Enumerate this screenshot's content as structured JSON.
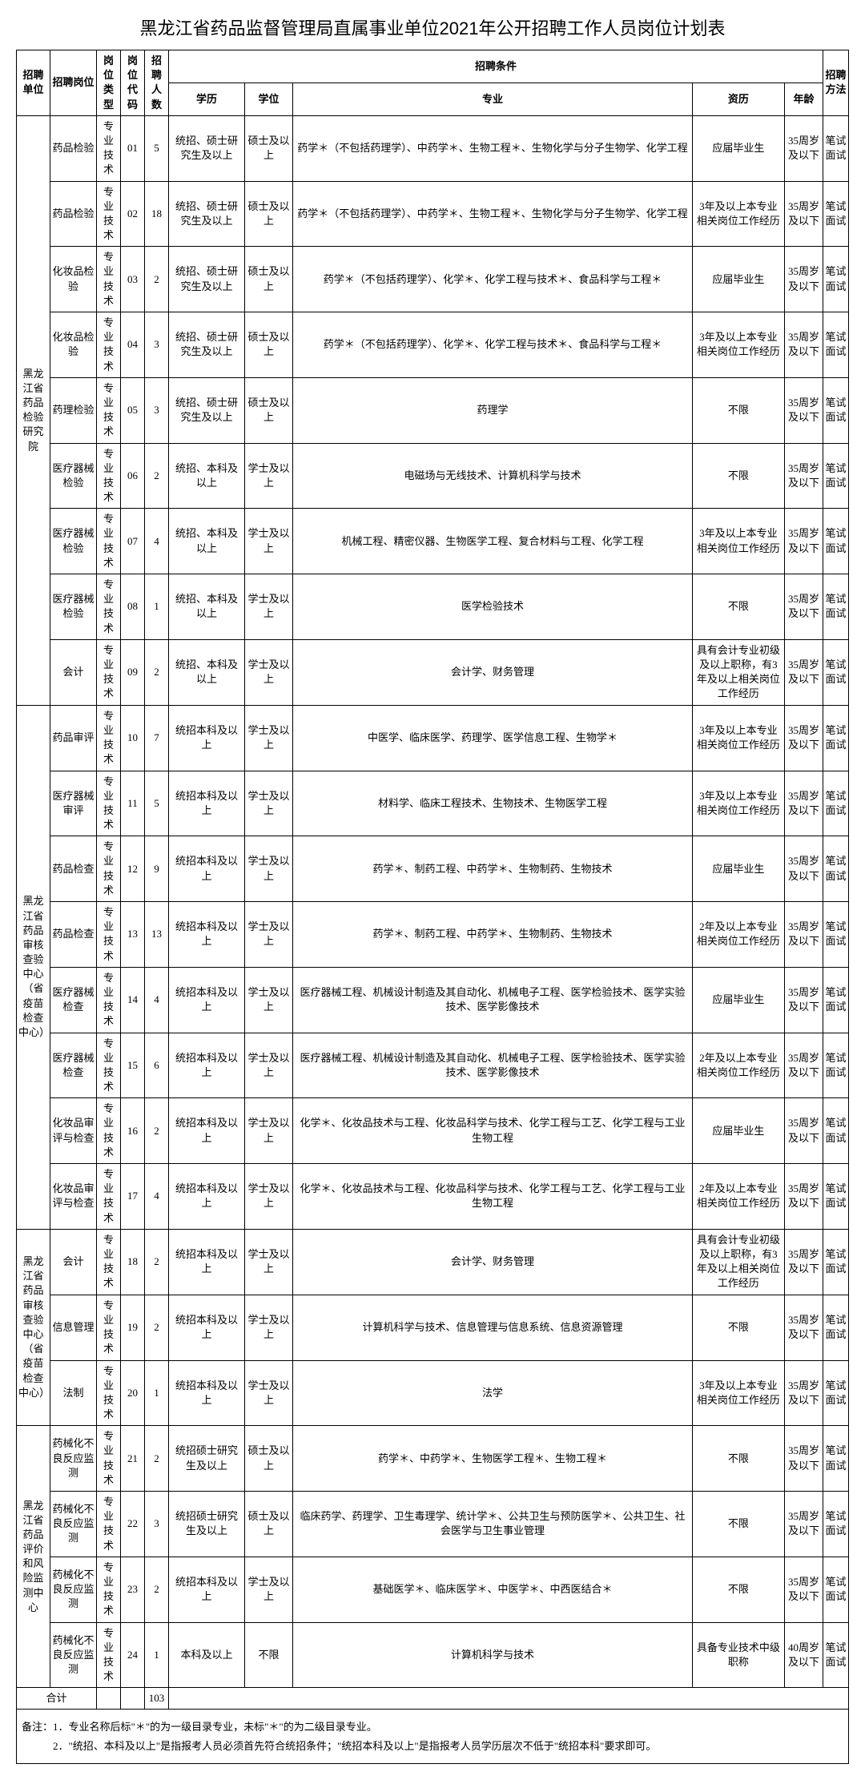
{
  "title": "黑龙江省药品监督管理局直属事业单位2021年公开招聘工作人员岗位计划表",
  "headers": {
    "unit": "招聘单位",
    "post": "招聘岗位",
    "type": "岗位类型",
    "code": "岗位代码",
    "count": "招聘人数",
    "conditions": "招聘条件",
    "edu": "学历",
    "degree": "学位",
    "major": "专业",
    "exp": "资历",
    "age": "年龄",
    "method": "招聘方法"
  },
  "units": {
    "u1": "黑龙江省药品检验研究院",
    "u2": "黑龙江省药品审核查验中心（省疫苗检查中心）",
    "u2b": "黑龙江省药品审核查验中心（省疫苗检查中心）",
    "u3": "黑龙江省药品评价和风险监测中心"
  },
  "labels": {
    "total": "合计",
    "total_count": "103",
    "note_prefix": "备注：",
    "note1": "1．专业名称后标\"＊\"的为一级目录专业，未标\"＊\"的为二级目录专业。",
    "note2": "2．\"统招、本科及以上\"是指报考人员必须首先符合统招条件；\"统招本科及以上\"是指报考人员学历层次不低于\"统招本科\"要求即可。"
  },
  "rows": [
    {
      "post": "药品检验",
      "type": "专业技术",
      "code": "01",
      "count": "5",
      "edu": "统招、硕士研究生及以上",
      "degree": "硕士及以上",
      "major": "药学＊（不包括药理学）、中药学＊、生物工程＊、生物化学与分子生物学、化学工程",
      "exp": "应届毕业生",
      "age": "35周岁及以下",
      "method": "笔试面试"
    },
    {
      "post": "药品检验",
      "type": "专业技术",
      "code": "02",
      "count": "18",
      "edu": "统招、硕士研究生及以上",
      "degree": "硕士及以上",
      "major": "药学＊（不包括药理学）、中药学＊、生物工程＊、生物化学与分子生物学、化学工程",
      "exp": "3年及以上本专业相关岗位工作经历",
      "age": "35周岁及以下",
      "method": "笔试面试"
    },
    {
      "post": "化妆品检验",
      "type": "专业技术",
      "code": "03",
      "count": "2",
      "edu": "统招、硕士研究生及以上",
      "degree": "硕士及以上",
      "major": "药学＊（不包括药理学）、化学＊、化学工程与技术＊、食品科学与工程＊",
      "exp": "应届毕业生",
      "age": "35周岁及以下",
      "method": "笔试面试"
    },
    {
      "post": "化妆品检验",
      "type": "专业技术",
      "code": "04",
      "count": "3",
      "edu": "统招、硕士研究生及以上",
      "degree": "硕士及以上",
      "major": "药学＊（不包括药理学）、化学＊、化学工程与技术＊、食品科学与工程＊",
      "exp": "3年及以上本专业相关岗位工作经历",
      "age": "35周岁及以下",
      "method": "笔试面试"
    },
    {
      "post": "药理检验",
      "type": "专业技术",
      "code": "05",
      "count": "3",
      "edu": "统招、硕士研究生及以上",
      "degree": "硕士及以上",
      "major": "药理学",
      "exp": "不限",
      "age": "35周岁及以下",
      "method": "笔试面试"
    },
    {
      "post": "医疗器械检验",
      "type": "专业技术",
      "code": "06",
      "count": "2",
      "edu": "统招、本科及以上",
      "degree": "学士及以上",
      "major": "电磁场与无线技术、计算机科学与技术",
      "exp": "不限",
      "age": "35周岁及以下",
      "method": "笔试面试"
    },
    {
      "post": "医疗器械检验",
      "type": "专业技术",
      "code": "07",
      "count": "4",
      "edu": "统招、本科及以上",
      "degree": "学士及以上",
      "major": "机械工程、精密仪器、生物医学工程、复合材料与工程、化学工程",
      "exp": "3年及以上本专业相关岗位工作经历",
      "age": "35周岁及以下",
      "method": "笔试面试"
    },
    {
      "post": "医疗器械检验",
      "type": "专业技术",
      "code": "08",
      "count": "1",
      "edu": "统招、本科及以上",
      "degree": "学士及以上",
      "major": "医学检验技术",
      "exp": "不限",
      "age": "35周岁及以下",
      "method": "笔试面试"
    },
    {
      "post": "会计",
      "type": "专业技术",
      "code": "09",
      "count": "2",
      "edu": "统招、本科及以上",
      "degree": "学士及以上",
      "major": "会计学、财务管理",
      "exp": "具有会计专业初级及以上职称，有3年及以上相关岗位工作经历",
      "age": "35周岁及以下",
      "method": "笔试面试"
    },
    {
      "post": "药品审评",
      "type": "专业技术",
      "code": "10",
      "count": "7",
      "edu": "统招本科及以上",
      "degree": "学士及以上",
      "major": "中医学、临床医学、药理学、医学信息工程、生物学＊",
      "exp": "3年及以上本专业相关岗位工作经历",
      "age": "35周岁及以下",
      "method": "笔试面试"
    },
    {
      "post": "医疗器械审评",
      "type": "专业技术",
      "code": "11",
      "count": "5",
      "edu": "统招本科及以上",
      "degree": "学士及以上",
      "major": "材料学、临床工程技术、生物技术、生物医学工程",
      "exp": "3年及以上本专业相关岗位工作经历",
      "age": "35周岁及以下",
      "method": "笔试面试"
    },
    {
      "post": "药品检查",
      "type": "专业技术",
      "code": "12",
      "count": "9",
      "edu": "统招本科及以上",
      "degree": "学士及以上",
      "major": "药学＊、制药工程、中药学＊、生物制药、生物技术",
      "exp": "应届毕业生",
      "age": "35周岁及以下",
      "method": "笔试面试"
    },
    {
      "post": "药品检查",
      "type": "专业技术",
      "code": "13",
      "count": "13",
      "edu": "统招本科及以上",
      "degree": "学士及以上",
      "major": "药学＊、制药工程、中药学＊、生物制药、生物技术",
      "exp": "2年及以上本专业相关岗位工作经历",
      "age": "35周岁及以下",
      "method": "笔试面试"
    },
    {
      "post": "医疗器械检查",
      "type": "专业技术",
      "code": "14",
      "count": "4",
      "edu": "统招本科及以上",
      "degree": "学士及以上",
      "major": "医疗器械工程、机械设计制造及其自动化、机械电子工程、医学检验技术、医学实验技术、医学影像技术",
      "exp": "应届毕业生",
      "age": "35周岁及以下",
      "method": "笔试面试"
    },
    {
      "post": "医疗器械检查",
      "type": "专业技术",
      "code": "15",
      "count": "6",
      "edu": "统招本科及以上",
      "degree": "学士及以上",
      "major": "医疗器械工程、机械设计制造及其自动化、机械电子工程、医学检验技术、医学实验技术、医学影像技术",
      "exp": "2年及以上本专业相关岗位工作经历",
      "age": "35周岁及以下",
      "method": "笔试面试"
    },
    {
      "post": "化妆品审评与检查",
      "type": "专业技术",
      "code": "16",
      "count": "2",
      "edu": "统招本科及以上",
      "degree": "学士及以上",
      "major": "化学＊、化妆品技术与工程、化妆品科学与技术、化学工程与工艺、化学工程与工业生物工程",
      "exp": "应届毕业生",
      "age": "35周岁及以下",
      "method": "笔试面试"
    },
    {
      "post": "化妆品审评与检查",
      "type": "专业技术",
      "code": "17",
      "count": "4",
      "edu": "统招本科及以上",
      "degree": "学士及以上",
      "major": "化学＊、化妆品技术与工程、化妆品科学与技术、化学工程与工艺、化学工程与工业生物工程",
      "exp": "2年及以上本专业相关岗位工作经历",
      "age": "35周岁及以下",
      "method": "笔试面试"
    },
    {
      "post": "会计",
      "type": "专业技术",
      "code": "18",
      "count": "2",
      "edu": "统招本科及以上",
      "degree": "学士及以上",
      "major": "会计学、财务管理",
      "exp": "具有会计专业初级及以上职称，有3年及以上相关岗位工作经历",
      "age": "35周岁及以下",
      "method": "笔试面试"
    },
    {
      "post": "信息管理",
      "type": "专业技术",
      "code": "19",
      "count": "2",
      "edu": "统招本科及以上",
      "degree": "学士及以上",
      "major": "计算机科学与技术、信息管理与信息系统、信息资源管理",
      "exp": "不限",
      "age": "35周岁及以下",
      "method": "笔试面试"
    },
    {
      "post": "法制",
      "type": "专业技术",
      "code": "20",
      "count": "1",
      "edu": "统招本科及以上",
      "degree": "学士及以上",
      "major": "法学",
      "exp": "3年及以上本专业相关岗位工作经历",
      "age": "35周岁及以下",
      "method": "笔试面试"
    },
    {
      "post": "药械化不良反应监测",
      "type": "专业技术",
      "code": "21",
      "count": "2",
      "edu": "统招硕士研究生及以上",
      "degree": "硕士及以上",
      "major": "药学＊、中药学＊、生物医学工程＊、生物工程＊",
      "exp": "不限",
      "age": "35周岁及以下",
      "method": "笔试面试"
    },
    {
      "post": "药械化不良反应监测",
      "type": "专业技术",
      "code": "22",
      "count": "3",
      "edu": "统招硕士研究生及以上",
      "degree": "硕士及以上",
      "major": "临床药学、药理学、卫生毒理学、统计学＊、公共卫生与预防医学＊、公共卫生、社会医学与卫生事业管理",
      "exp": "不限",
      "age": "35周岁及以下",
      "method": "笔试面试"
    },
    {
      "post": "药械化不良反应监测",
      "type": "专业技术",
      "code": "23",
      "count": "2",
      "edu": "统招本科及以上",
      "degree": "学士及以上",
      "major": "基础医学＊、临床医学＊、中医学＊、中西医结合＊",
      "exp": "不限",
      "age": "35周岁及以下",
      "method": "笔试面试"
    },
    {
      "post": "药械化不良反应监测",
      "type": "专业技术",
      "code": "24",
      "count": "1",
      "edu": "本科及以上",
      "degree": "不限",
      "major": "计算机科学与技术",
      "exp": "具备专业技术中级职称",
      "age": "40周岁及以下",
      "method": "笔试面试"
    }
  ]
}
